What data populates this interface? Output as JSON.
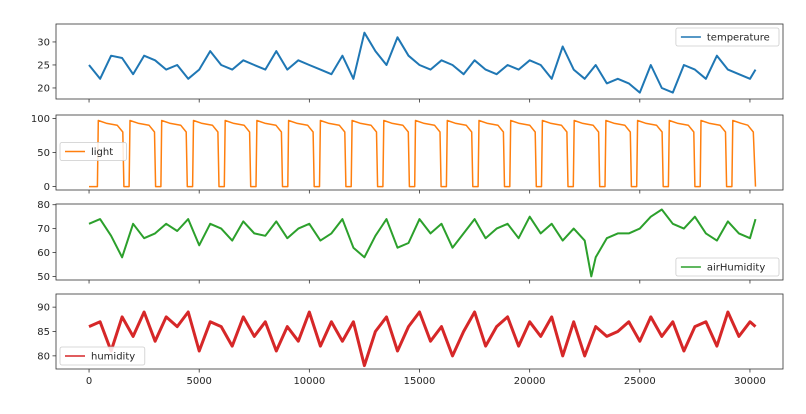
{
  "chart_data": [
    {
      "type": "line",
      "series": [
        {
          "name": "temperature",
          "color": "#1f77b4"
        }
      ],
      "legend": "top-right",
      "ylim": [
        17.6,
        33.9
      ],
      "yticks": [
        20,
        25,
        30
      ],
      "xlim": [
        -1500,
        31500
      ],
      "x": [
        0,
        500,
        1000,
        1500,
        2000,
        2500,
        3000,
        3500,
        4000,
        4500,
        5000,
        5500,
        6000,
        6500,
        7000,
        7500,
        8000,
        8500,
        9000,
        9500,
        10000,
        10500,
        11000,
        11500,
        12000,
        12500,
        13000,
        13500,
        14000,
        14500,
        15000,
        15500,
        16000,
        16500,
        17000,
        17500,
        18000,
        18500,
        19000,
        19500,
        20000,
        20500,
        21000,
        21500,
        22000,
        22500,
        23000,
        23500,
        24000,
        24500,
        25000,
        25500,
        26000,
        26500,
        27000,
        27500,
        28000,
        28500,
        29000,
        29500,
        30000,
        30250
      ],
      "y": [
        25,
        22,
        27,
        26.5,
        23,
        27,
        26,
        24,
        25,
        22,
        24,
        28,
        25,
        24,
        26,
        25,
        24,
        28,
        24,
        26,
        25,
        24,
        23,
        27,
        22,
        32,
        28,
        25,
        31,
        27,
        25,
        24,
        26,
        25,
        23,
        26,
        24,
        23,
        25,
        24,
        26,
        25,
        22,
        29,
        24,
        22,
        25,
        21,
        22,
        21,
        19,
        25,
        20,
        19,
        25,
        24,
        22,
        27,
        24,
        23,
        22,
        24
      ]
    },
    {
      "type": "line",
      "series": [
        {
          "name": "light",
          "color": "#ff7f0e"
        }
      ],
      "legend": "center-left",
      "ylim": [
        -5,
        105
      ],
      "yticks": [
        0,
        50,
        100
      ],
      "xlim": [
        -1500,
        31500
      ],
      "x": [
        0,
        380,
        420,
        780,
        1280,
        1530,
        1580,
        1820,
        1860,
        2220,
        2720,
        2970,
        3020,
        3260,
        3300,
        3660,
        4160,
        4410,
        4460,
        4700,
        4740,
        5100,
        5600,
        5850,
        5900,
        6140,
        6180,
        6540,
        7040,
        7290,
        7340,
        7580,
        7620,
        7980,
        8480,
        8730,
        8780,
        9020,
        9060,
        9420,
        9920,
        10170,
        10220,
        10460,
        10500,
        10860,
        11360,
        11610,
        11660,
        11900,
        11940,
        12300,
        12800,
        13050,
        13100,
        13340,
        13380,
        13740,
        14240,
        14490,
        14540,
        14780,
        14820,
        15180,
        15680,
        15930,
        15980,
        16220,
        16260,
        16620,
        17120,
        17370,
        17420,
        17660,
        17700,
        18060,
        18560,
        18810,
        18860,
        19100,
        19140,
        19500,
        20000,
        20250,
        20300,
        20540,
        20580,
        20940,
        21440,
        21690,
        21740,
        21980,
        22020,
        22380,
        22880,
        23130,
        23180,
        23420,
        23460,
        23820,
        24320,
        24570,
        24620,
        24860,
        24900,
        25260,
        25760,
        26010,
        26060,
        26300,
        26340,
        26700,
        27200,
        27450,
        27500,
        27740,
        27780,
        28140,
        28640,
        28890,
        28940,
        29180,
        29220,
        29580,
        29900,
        30150,
        30250
      ],
      "y": [
        0,
        0,
        97,
        93,
        90,
        80,
        0,
        0,
        97,
        93,
        90,
        80,
        0,
        0,
        97,
        93,
        90,
        80,
        0,
        0,
        97,
        93,
        90,
        80,
        0,
        0,
        97,
        93,
        90,
        80,
        0,
        0,
        97,
        93,
        90,
        80,
        0,
        0,
        97,
        93,
        90,
        80,
        0,
        0,
        97,
        93,
        90,
        80,
        0,
        0,
        97,
        93,
        90,
        80,
        0,
        0,
        97,
        93,
        90,
        80,
        0,
        0,
        97,
        93,
        90,
        80,
        0,
        0,
        97,
        93,
        90,
        80,
        0,
        0,
        97,
        93,
        90,
        80,
        0,
        0,
        97,
        93,
        90,
        80,
        0,
        0,
        97,
        93,
        90,
        80,
        0,
        0,
        97,
        93,
        90,
        80,
        0,
        0,
        97,
        93,
        90,
        80,
        0,
        0,
        97,
        93,
        90,
        80,
        0,
        0,
        97,
        93,
        90,
        80,
        0,
        0,
        97,
        93,
        90,
        80,
        0,
        0,
        97,
        93,
        90,
        80,
        0
      ]
    },
    {
      "type": "line",
      "series": [
        {
          "name": "airHumidity",
          "color": "#2ca02c"
        }
      ],
      "legend": "bottom-right",
      "ylim": [
        48.5,
        80.3
      ],
      "yticks": [
        50,
        60,
        70,
        80
      ],
      "xlim": [
        -1500,
        31500
      ],
      "x": [
        0,
        500,
        1000,
        1500,
        2000,
        2500,
        3000,
        3500,
        4000,
        4500,
        5000,
        5500,
        6000,
        6500,
        7000,
        7500,
        8000,
        8500,
        9000,
        9500,
        10000,
        10500,
        11000,
        11500,
        12000,
        12500,
        13000,
        13500,
        14000,
        14500,
        15000,
        15500,
        16000,
        16500,
        17000,
        17500,
        18000,
        18500,
        19000,
        19500,
        20000,
        20500,
        21000,
        21500,
        22000,
        22500,
        22800,
        23000,
        23500,
        24000,
        24500,
        25000,
        25500,
        26000,
        26500,
        27000,
        27500,
        28000,
        28500,
        29000,
        29500,
        30000,
        30250
      ],
      "y": [
        72,
        74,
        67,
        58,
        72,
        66,
        68,
        72,
        69,
        74,
        63,
        72,
        70,
        65,
        73,
        68,
        67,
        73,
        66,
        70,
        72,
        65,
        68,
        74,
        62,
        58,
        67,
        74,
        62,
        64,
        74,
        68,
        72,
        62,
        68,
        74,
        66,
        70,
        72,
        66,
        75,
        68,
        72,
        65,
        70,
        65,
        50,
        58,
        66,
        68,
        68,
        70,
        75,
        78,
        72,
        70,
        75,
        68,
        65,
        73,
        68,
        66,
        74
      ]
    },
    {
      "type": "line",
      "series": [
        {
          "name": "humidity",
          "color": "#d62728"
        }
      ],
      "legend": "bottom-left",
      "ylim": [
        77.3,
        92.7
      ],
      "yticks": [
        80,
        85,
        90
      ],
      "xlim": [
        -1500,
        31500
      ],
      "xticks": [
        0,
        5000,
        10000,
        15000,
        20000,
        25000,
        30000
      ],
      "x": [
        0,
        500,
        1000,
        1500,
        2000,
        2500,
        3000,
        3500,
        4000,
        4500,
        5000,
        5500,
        6000,
        6500,
        7000,
        7500,
        8000,
        8500,
        9000,
        9500,
        10000,
        10500,
        11000,
        11500,
        12000,
        12500,
        13000,
        13500,
        14000,
        14500,
        15000,
        15500,
        16000,
        16500,
        17000,
        17500,
        18000,
        18500,
        19000,
        19500,
        20000,
        20500,
        21000,
        21500,
        22000,
        22500,
        23000,
        23500,
        24000,
        24500,
        25000,
        25500,
        26000,
        26500,
        27000,
        27500,
        28000,
        28500,
        29000,
        29500,
        30000,
        30250
      ],
      "y": [
        86,
        87,
        81,
        88,
        84,
        89,
        83,
        88,
        86,
        89,
        81,
        87,
        86,
        82,
        88,
        84,
        87,
        81,
        86,
        83,
        89,
        82,
        87,
        83,
        87,
        78,
        85,
        88,
        81,
        86,
        89,
        83,
        86,
        80,
        85,
        89,
        82,
        86,
        88,
        82,
        87,
        84,
        88,
        80,
        87,
        80,
        86,
        84,
        85,
        87,
        83,
        88,
        84,
        87,
        81,
        86,
        87,
        82,
        89,
        84,
        87,
        86
      ]
    }
  ]
}
